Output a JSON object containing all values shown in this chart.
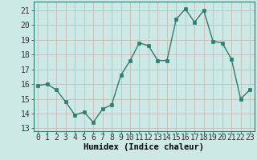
{
  "x": [
    0,
    1,
    2,
    3,
    4,
    5,
    6,
    7,
    8,
    9,
    10,
    11,
    12,
    13,
    14,
    15,
    16,
    17,
    18,
    19,
    20,
    21,
    22,
    23
  ],
  "y": [
    15.9,
    16.0,
    15.6,
    14.8,
    13.9,
    14.1,
    13.4,
    14.3,
    14.6,
    16.6,
    17.6,
    18.8,
    18.6,
    17.6,
    17.6,
    20.4,
    21.1,
    20.2,
    21.0,
    18.9,
    18.8,
    17.7,
    15.0,
    15.6
  ],
  "line_color": "#2e7d6e",
  "marker": "s",
  "marker_size": 2.5,
  "bg_color": "#cce9e5",
  "grid_color_h": "#c9b8b8",
  "grid_color_v": "#c9b8b8",
  "xlabel": "Humidex (Indice chaleur)",
  "ylabel_ticks": [
    13,
    14,
    15,
    16,
    17,
    18,
    19,
    20,
    21
  ],
  "ylim": [
    12.8,
    21.6
  ],
  "xlim": [
    -0.5,
    23.5
  ],
  "xlabel_fontsize": 7.5,
  "tick_fontsize": 7,
  "linewidth": 1.0
}
